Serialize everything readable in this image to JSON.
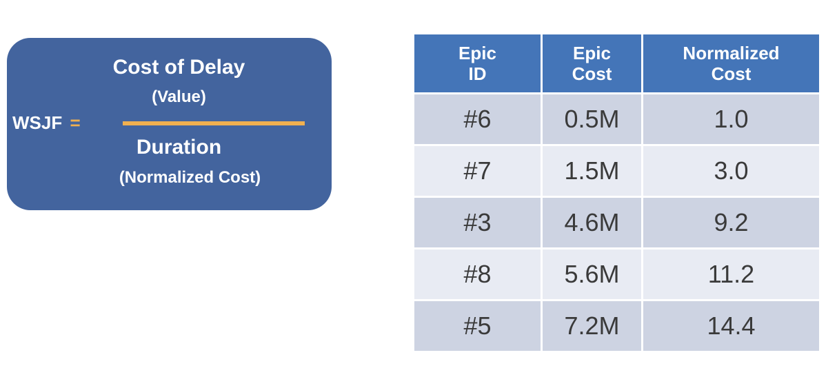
{
  "formula": {
    "lhs": "WSJF",
    "equals": "=",
    "numerator": "Cost of Delay",
    "numerator_sub": "(Value)",
    "denominator": "Duration",
    "denominator_sub": "(Normalized Cost)",
    "box_color": "#43649e",
    "accent_color": "#f0b050"
  },
  "table": {
    "headers": [
      {
        "line1": "Epic",
        "line2": "ID"
      },
      {
        "line1": "Epic",
        "line2": "Cost"
      },
      {
        "line1": "Normalized",
        "line2": "Cost"
      }
    ],
    "rows": [
      {
        "id": "#6",
        "cost": "0.5M",
        "normalized": "1.0"
      },
      {
        "id": "#7",
        "cost": "1.5M",
        "normalized": "3.0"
      },
      {
        "id": "#3",
        "cost": "4.6M",
        "normalized": "9.2"
      },
      {
        "id": "#8",
        "cost": "5.6M",
        "normalized": "11.2"
      },
      {
        "id": "#5",
        "cost": "7.2M",
        "normalized": "14.4"
      }
    ],
    "header_color": "#4475b8",
    "row_colors": [
      "#cdd3e2",
      "#e8ebf3"
    ]
  }
}
